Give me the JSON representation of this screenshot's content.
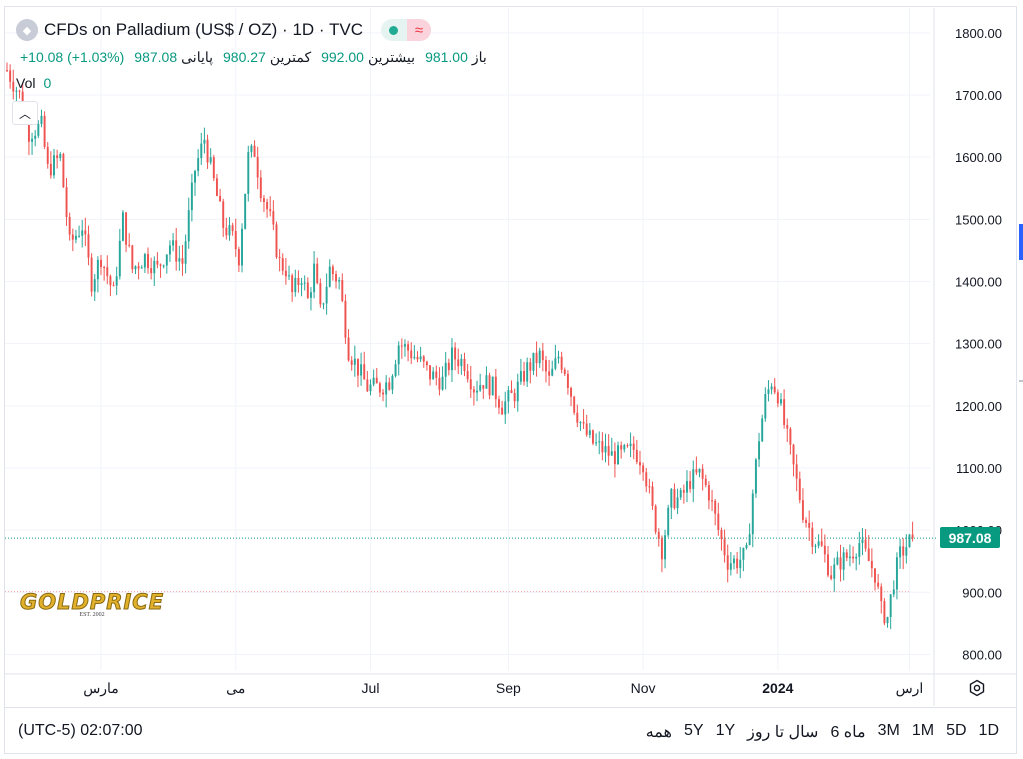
{
  "header": {
    "symbol_logo": "palladium-icon",
    "title": "CFDs on Palladium (US$ / OZ) · 1D · TVC",
    "open_label": "باز",
    "open_value": "981.00",
    "high_label": "بیشترین",
    "high_value": "992.00",
    "low_label": "کمترین",
    "low_value": "980.27",
    "close_label": "پایانی",
    "close_value": "987.08",
    "change": "+10.08 (+1.03%)",
    "vol_label": "Vol",
    "vol_value": "0"
  },
  "last_price_tag": "987.08",
  "bottom": {
    "timezone_time": "(UTC-5) 02:07:00",
    "ranges": [
      "1D",
      "5D",
      "1M",
      "3M",
      "6 ماه",
      "سال تا روز",
      "1Y",
      "5Y",
      "همه"
    ]
  },
  "logo": {
    "name": "GOLDPRICE",
    "est": "EST. 2002"
  },
  "colors": {
    "up": "#26a69a",
    "down": "#ef5350",
    "grid": "#f0f3fa",
    "axis_text": "#131722",
    "last_line": "#089981",
    "low_line": "#f7a8ac"
  },
  "chart_data": {
    "type": "candlestick",
    "title": "CFDs on Palladium (US$ / OZ) · 1D · TVC",
    "ylim": [
      775,
      1840
    ],
    "y_ticks": [
      "1800.00",
      "1700.00",
      "1600.00",
      "1500.00",
      "1400.00",
      "1300.00",
      "1200.00",
      "1100.00",
      "1000.00",
      "900.00",
      "800.00"
    ],
    "y_tick_values": [
      1800,
      1700,
      1600,
      1500,
      1400,
      1300,
      1200,
      1100,
      1000,
      900,
      800
    ],
    "x_ticks": [
      {
        "label": "مارس",
        "index": 30
      },
      {
        "label": "می",
        "index": 73
      },
      {
        "label": "Jul",
        "index": 116
      },
      {
        "label": "Sep",
        "index": 160
      },
      {
        "label": "Nov",
        "index": 203
      },
      {
        "label": "2024",
        "index": 246,
        "bold": true
      },
      {
        "label": "ارس",
        "index": 288
      }
    ],
    "last_price": 987.08,
    "reference_low_line": 901,
    "x_range": [
      0,
      292
    ],
    "anchors": [
      [
        0,
        1740
      ],
      [
        4,
        1700
      ],
      [
        7,
        1640
      ],
      [
        11,
        1650
      ],
      [
        13,
        1580
      ],
      [
        17,
        1600
      ],
      [
        20,
        1460
      ],
      [
        24,
        1490
      ],
      [
        27,
        1400
      ],
      [
        30,
        1440
      ],
      [
        34,
        1380
      ],
      [
        37,
        1500
      ],
      [
        40,
        1420
      ],
      [
        44,
        1440
      ],
      [
        48,
        1420
      ],
      [
        52,
        1460
      ],
      [
        56,
        1430
      ],
      [
        60,
        1580
      ],
      [
        63,
        1630
      ],
      [
        66,
        1560
      ],
      [
        69,
        1490
      ],
      [
        72,
        1470
      ],
      [
        74,
        1440
      ],
      [
        77,
        1600
      ],
      [
        79,
        1610
      ],
      [
        81,
        1550
      ],
      [
        84,
        1500
      ],
      [
        87,
        1430
      ],
      [
        89,
        1420
      ],
      [
        91,
        1380
      ],
      [
        94,
        1410
      ],
      [
        96,
        1370
      ],
      [
        98,
        1420
      ],
      [
        100,
        1350
      ],
      [
        103,
        1420
      ],
      [
        106,
        1400
      ],
      [
        109,
        1290
      ],
      [
        112,
        1260
      ],
      [
        115,
        1230
      ],
      [
        119,
        1230
      ],
      [
        122,
        1240
      ],
      [
        125,
        1300
      ],
      [
        128,
        1290
      ],
      [
        132,
        1270
      ],
      [
        135,
        1250
      ],
      [
        139,
        1240
      ],
      [
        142,
        1280
      ],
      [
        146,
        1270
      ],
      [
        149,
        1230
      ],
      [
        152,
        1240
      ],
      [
        155,
        1230
      ],
      [
        158,
        1200
      ],
      [
        162,
        1220
      ],
      [
        166,
        1260
      ],
      [
        170,
        1280
      ],
      [
        173,
        1240
      ],
      [
        176,
        1280
      ],
      [
        178,
        1260
      ],
      [
        181,
        1200
      ],
      [
        184,
        1160
      ],
      [
        187,
        1140
      ],
      [
        190,
        1130
      ],
      [
        193,
        1120
      ],
      [
        196,
        1120
      ],
      [
        200,
        1130
      ],
      [
        203,
        1110
      ],
      [
        206,
        1030
      ],
      [
        209,
        970
      ],
      [
        212,
        1050
      ],
      [
        215,
        1050
      ],
      [
        218,
        1080
      ],
      [
        221,
        1090
      ],
      [
        224,
        1060
      ],
      [
        227,
        1000
      ],
      [
        230,
        950
      ],
      [
        233,
        950
      ],
      [
        236,
        960
      ],
      [
        238,
        1060
      ],
      [
        240,
        1150
      ],
      [
        242,
        1210
      ],
      [
        244,
        1240
      ],
      [
        246,
        1220
      ],
      [
        248,
        1170
      ],
      [
        251,
        1100
      ],
      [
        254,
        1030
      ],
      [
        257,
        990
      ],
      [
        260,
        970
      ],
      [
        263,
        930
      ],
      [
        266,
        950
      ],
      [
        269,
        960
      ],
      [
        272,
        980
      ],
      [
        275,
        950
      ],
      [
        277,
        930
      ],
      [
        279,
        870
      ],
      [
        281,
        860
      ],
      [
        283,
        920
      ],
      [
        285,
        960
      ],
      [
        287,
        975
      ],
      [
        289,
        987.08
      ]
    ]
  }
}
